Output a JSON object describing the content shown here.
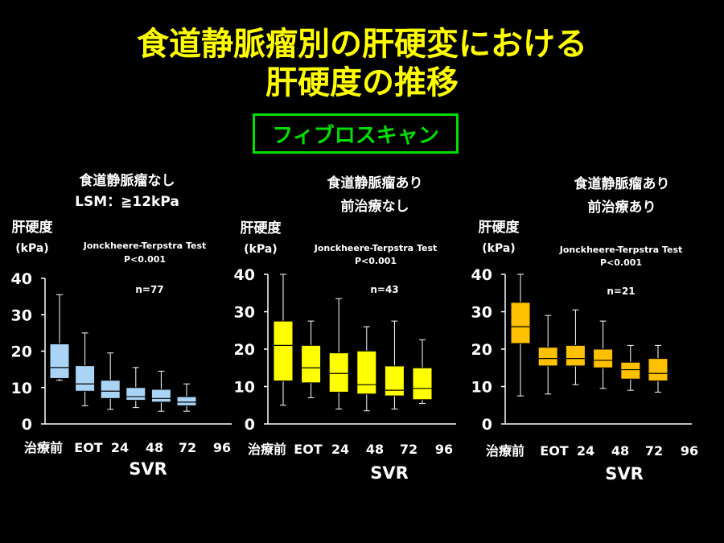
{
  "title": {
    "line1": "食道静脈瘤別の肝硬変における",
    "line2": "肝硬度の推移"
  },
  "method_label": "フィブロスキャン",
  "colors": {
    "background": "#000000",
    "title": "#ffff00",
    "method": "#00e000",
    "text": "#ffffff",
    "panel1_box": "#a9d4f5",
    "panel2_box": "#ffff00",
    "panel3_box": "#ffc000"
  },
  "chart_data": [
    {
      "type": "box",
      "title": [
        "食道静脈瘤なし",
        "LSM：≧12kPa"
      ],
      "ylabel": [
        "肝硬度",
        "(kPa)"
      ],
      "test": [
        "Jonckheere-Terpstra Test",
        "P<0.001"
      ],
      "n": "n=77",
      "categories": [
        "治療前",
        "EOT",
        "24",
        "48",
        "72",
        "96"
      ],
      "xlabel": "SVR",
      "ylim": [
        0,
        40
      ],
      "yticks": [
        0,
        10,
        20,
        30,
        40
      ],
      "box_color": "#a9d4f5",
      "boxes": [
        {
          "min": 12,
          "q1": 12.5,
          "median": 15.5,
          "q3": 22,
          "max": 35.5
        },
        {
          "min": 5,
          "q1": 9,
          "median": 11,
          "q3": 16,
          "max": 25
        },
        {
          "min": 4,
          "q1": 7,
          "median": 9,
          "q3": 12,
          "max": 19.5
        },
        {
          "min": 4.5,
          "q1": 6.5,
          "median": 7.5,
          "q3": 10,
          "max": 15.5
        },
        {
          "min": 3.5,
          "q1": 6,
          "median": 7,
          "q3": 9.5,
          "max": 14.5
        },
        {
          "min": 3.5,
          "q1": 5,
          "median": 6,
          "q3": 7.5,
          "max": 11
        }
      ]
    },
    {
      "type": "box",
      "title": [
        "食道静脈瘤あり",
        "前治療なし"
      ],
      "ylabel": [
        "肝硬度",
        "(kPa)"
      ],
      "test": [
        "Jonckheere-Terpstra Test",
        "P<0.001"
      ],
      "n": "n=43",
      "categories": [
        "治療前",
        "EOT",
        "24",
        "48",
        "72",
        "96"
      ],
      "xlabel": "SVR",
      "ylim": [
        0,
        40
      ],
      "yticks": [
        0,
        10,
        20,
        30,
        40
      ],
      "box_color": "#ffff00",
      "boxes": [
        {
          "min": 5,
          "q1": 11.5,
          "median": 21,
          "q3": 27.5,
          "max": 40
        },
        {
          "min": 7,
          "q1": 11,
          "median": 15,
          "q3": 21,
          "max": 27.5
        },
        {
          "min": 4,
          "q1": 8.5,
          "median": 13.5,
          "q3": 19,
          "max": 33.5
        },
        {
          "min": 3.5,
          "q1": 8,
          "median": 10.5,
          "q3": 19.5,
          "max": 26
        },
        {
          "min": 4,
          "q1": 7.5,
          "median": 9,
          "q3": 15.5,
          "max": 27.5
        },
        {
          "min": 5.5,
          "q1": 6.5,
          "median": 9.5,
          "q3": 15,
          "max": 22.5
        }
      ]
    },
    {
      "type": "box",
      "title": [
        "食道静脈瘤あり",
        "前治療あり"
      ],
      "ylabel": [
        "肝硬度",
        "(kPa)"
      ],
      "test": [
        "Jonckheere-Terpstra Test",
        "P<0.001"
      ],
      "n": "n=21",
      "categories": [
        "治療前",
        "EOT",
        "24",
        "48",
        "72",
        "96"
      ],
      "xlabel": "SVR",
      "ylim": [
        0,
        40
      ],
      "yticks": [
        0,
        10,
        20,
        30,
        40
      ],
      "box_color": "#ffc000",
      "boxes": [
        {
          "min": 7.5,
          "q1": 21.5,
          "median": 26,
          "q3": 32.5,
          "max": 40
        },
        {
          "min": 8,
          "q1": 15.5,
          "median": 17.5,
          "q3": 20.5,
          "max": 29
        },
        {
          "min": 10.5,
          "q1": 15.5,
          "median": 17.5,
          "q3": 21,
          "max": 30.5
        },
        {
          "min": 9.5,
          "q1": 15,
          "median": 17,
          "q3": 20,
          "max": 27.5
        },
        {
          "min": 9,
          "q1": 12,
          "median": 14.5,
          "q3": 16.5,
          "max": 21
        },
        {
          "min": 8.5,
          "q1": 11.5,
          "median": 13.5,
          "q3": 17.5,
          "max": 21
        }
      ]
    }
  ]
}
